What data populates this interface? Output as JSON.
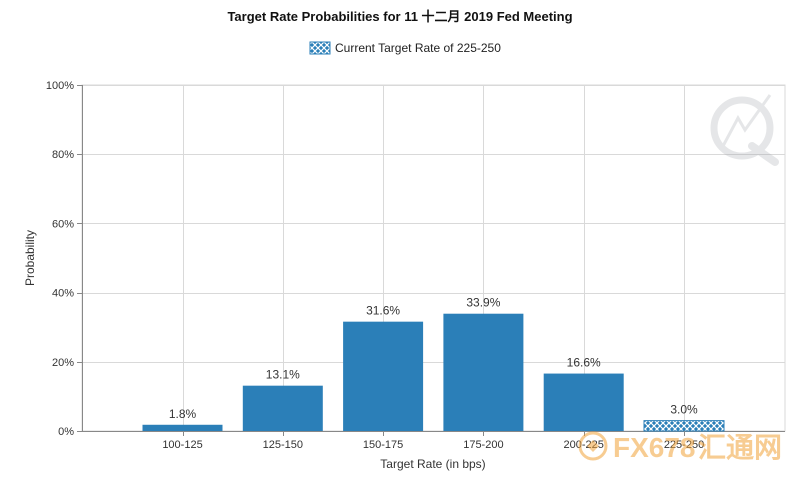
{
  "chart_data": {
    "type": "bar",
    "title": "Target Rate Probabilities for 11 十二月 2019 Fed Meeting",
    "xlabel": "Target Rate (in bps)",
    "ylabel": "Probability",
    "ylim": [
      0,
      100
    ],
    "y_ticks": [
      "0%",
      "20%",
      "40%",
      "60%",
      "80%",
      "100%"
    ],
    "y_tick_values": [
      0,
      20,
      40,
      60,
      80,
      100
    ],
    "categories": [
      "100-125",
      "125-150",
      "150-175",
      "175-200",
      "200-225",
      "225-250"
    ],
    "values": [
      1.8,
      13.1,
      31.6,
      33.9,
      16.6,
      3.0
    ],
    "data_labels": [
      "1.8%",
      "13.1%",
      "31.6%",
      "33.9%",
      "16.6%",
      "3.0%"
    ],
    "highlight_category": "225-250",
    "legend": {
      "label": "Current Target Rate of 225-250",
      "position": "top-center"
    },
    "grid": true,
    "colors": {
      "bar": "#2b7fb8",
      "highlight_bar": "#2b7fb8",
      "grid": "#d9d9d9",
      "axis": "#888888"
    }
  },
  "watermark": {
    "text_fx": "FX678",
    "text_cn": "汇通网"
  }
}
